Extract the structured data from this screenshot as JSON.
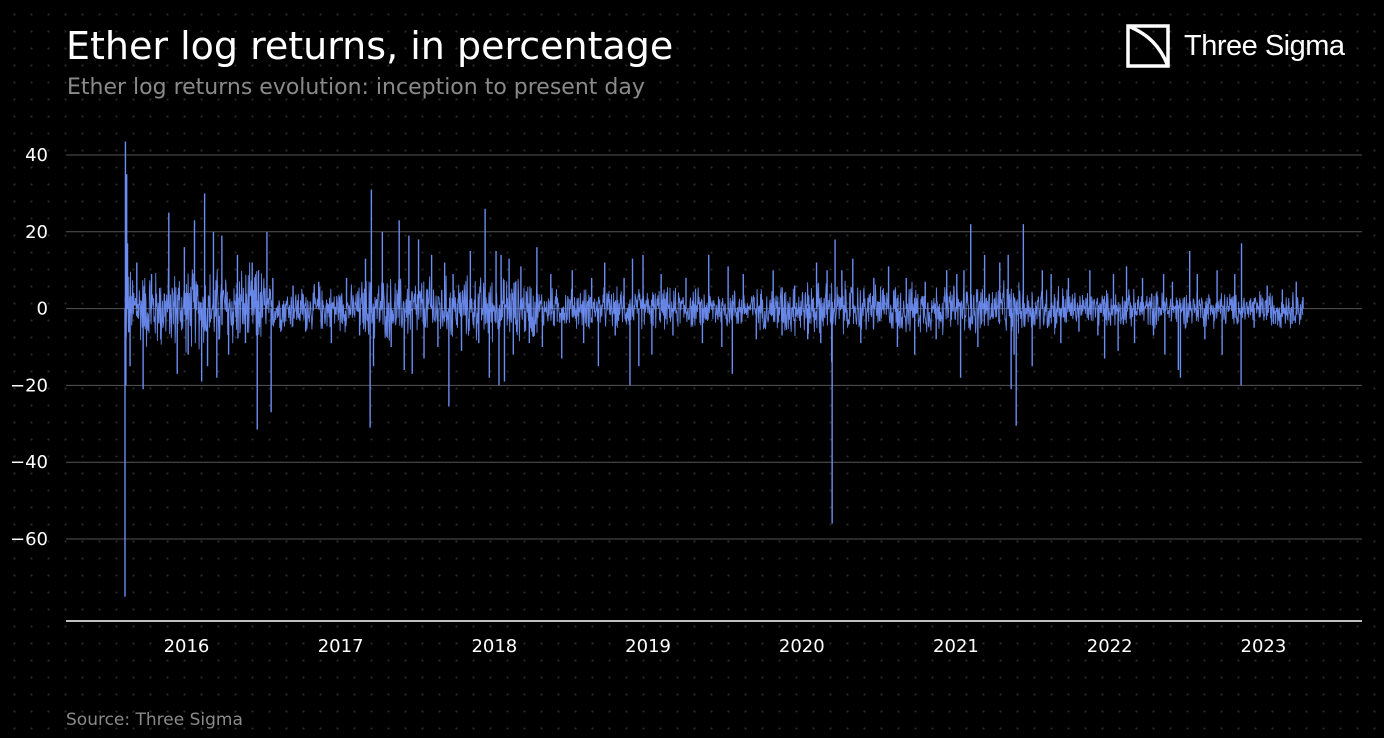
{
  "header": {
    "title": "Ether log returns, in percentage",
    "subtitle": "Ether log returns evolution: inception to present day"
  },
  "brand": {
    "logo_text": "Three Sigma",
    "logo_icon": "three-sigma-logo-icon"
  },
  "footer": {
    "source": "Source: Three Sigma"
  },
  "colors": {
    "background": "#000000",
    "series": "#6b8cf0",
    "grid": "#555555",
    "axis": "#ffffff"
  },
  "chart_data": {
    "type": "line",
    "title": "Ether log returns, in percentage",
    "subtitle": "Ether log returns evolution: inception to present day",
    "xlabel": "",
    "ylabel": "",
    "xlim": [
      "2015-08-08",
      "2023-04-05"
    ],
    "ylim": [
      -80,
      45
    ],
    "yticks": [
      40,
      20,
      0,
      -20,
      -40,
      -60
    ],
    "ytick_labels": [
      "40",
      "20",
      "0",
      "−20",
      "−40",
      "−60"
    ],
    "xticks": [
      "2016-01-01",
      "2017-01-01",
      "2018-01-01",
      "2019-01-01",
      "2020-01-01",
      "2021-01-01",
      "2022-01-01",
      "2023-01-01"
    ],
    "xtick_labels": [
      "2016",
      "2017",
      "2018",
      "2019",
      "2020",
      "2021",
      "2022",
      "2023"
    ],
    "grid": "horizontal",
    "legend": "none",
    "series": [
      {
        "x": [
          "2015-08-08",
          "2015-08-09",
          "2015-08-10",
          "2015-08-12",
          "2015-08-14",
          "2015-08-20",
          "2015-09-05",
          "2015-09-20",
          "2015-10-10",
          "2015-11-01",
          "2015-11-20",
          "2015-12-10",
          "2015-12-27",
          "2016-01-05",
          "2016-01-20",
          "2016-02-06",
          "2016-02-13",
          "2016-02-20",
          "2016-03-05",
          "2016-03-13",
          "2016-03-25",
          "2016-04-10",
          "2016-05-01",
          "2016-05-20",
          "2016-06-05",
          "2016-06-17",
          "2016-06-20",
          "2016-07-10",
          "2016-07-20",
          "2016-07-24",
          "2016-08-10",
          "2016-09-10",
          "2016-10-10",
          "2016-11-10",
          "2016-12-10",
          "2017-01-15",
          "2017-02-15",
          "2017-03-01",
          "2017-03-12",
          "2017-03-15",
          "2017-03-20",
          "2017-04-10",
          "2017-05-01",
          "2017-05-20",
          "2017-06-01",
          "2017-06-12",
          "2017-06-20",
          "2017-07-05",
          "2017-07-18",
          "2017-08-05",
          "2017-08-20",
          "2017-09-05",
          "2017-09-15",
          "2017-09-25",
          "2017-10-15",
          "2017-11-05",
          "2017-11-25",
          "2017-12-10",
          "2017-12-20",
          "2018-01-05",
          "2018-01-12",
          "2018-01-17",
          "2018-01-25",
          "2018-02-05",
          "2018-02-15",
          "2018-03-05",
          "2018-03-25",
          "2018-04-12",
          "2018-04-25",
          "2018-05-15",
          "2018-06-10",
          "2018-07-05",
          "2018-08-01",
          "2018-08-20",
          "2018-09-05",
          "2018-09-20",
          "2018-10-15",
          "2018-11-05",
          "2018-11-19",
          "2018-11-25",
          "2018-12-10",
          "2018-12-20",
          "2019-01-10",
          "2019-02-01",
          "2019-03-01",
          "2019-04-01",
          "2019-05-10",
          "2019-05-25",
          "2019-06-25",
          "2019-07-10",
          "2019-07-20",
          "2019-08-15",
          "2019-09-15",
          "2019-10-25",
          "2019-11-15",
          "2019-12-15",
          "2020-01-15",
          "2020-02-05",
          "2020-02-15",
          "2020-03-01",
          "2020-03-12",
          "2020-03-13",
          "2020-03-20",
          "2020-04-05",
          "2020-05-01",
          "2020-05-20",
          "2020-06-20",
          "2020-07-25",
          "2020-08-15",
          "2020-09-05",
          "2020-09-25",
          "2020-10-20",
          "2020-11-15",
          "2020-12-10",
          "2021-01-03",
          "2021-01-12",
          "2021-01-20",
          "2021-02-05",
          "2021-02-22",
          "2021-03-10",
          "2021-04-15",
          "2021-05-05",
          "2021-05-12",
          "2021-05-19",
          "2021-05-24",
          "2021-06-10",
          "2021-07-01",
          "2021-07-25",
          "2021-08-15",
          "2021-09-07",
          "2021-09-25",
          "2021-10-20",
          "2021-11-15",
          "2021-12-04",
          "2021-12-20",
          "2022-01-10",
          "2022-01-21",
          "2022-02-10",
          "2022-03-01",
          "2022-03-20",
          "2022-04-15",
          "2022-05-09",
          "2022-05-12",
          "2022-05-30",
          "2022-06-13",
          "2022-06-18",
          "2022-07-10",
          "2022-07-28",
          "2022-08-15",
          "2022-09-13",
          "2022-09-25",
          "2022-10-25",
          "2022-11-09",
          "2022-11-10",
          "2022-12-10",
          "2023-01-10",
          "2023-01-25",
          "2023-02-15",
          "2023-03-10",
          "2023-03-20",
          "2023-04-05"
        ],
        "y": [
          -75.0,
          43.5,
          -20.0,
          35.0,
          17.0,
          -15.0,
          12.0,
          -21.0,
          9.0,
          -8.0,
          25.0,
          -17.0,
          16.0,
          -12.0,
          23.0,
          -19.0,
          30.0,
          -15.0,
          20.0,
          -18.0,
          19.0,
          -12.0,
          14.0,
          -9.0,
          12.0,
          -31.5,
          10.0,
          20.0,
          -27.0,
          8.0,
          -5.0,
          6.0,
          -6.0,
          7.0,
          -9.0,
          8.0,
          -7.0,
          13.0,
          -31.0,
          31.0,
          -15.0,
          20.0,
          -10.0,
          23.0,
          -16.0,
          19.0,
          -17.0,
          18.0,
          -13.0,
          14.0,
          -10.0,
          12.0,
          -25.5,
          9.0,
          -11.0,
          15.0,
          -9.0,
          26.0,
          -18.0,
          15.0,
          -20.0,
          14.0,
          -19.0,
          13.0,
          -12.0,
          11.0,
          -9.0,
          16.0,
          -10.0,
          9.0,
          -13.0,
          10.0,
          -9.0,
          8.0,
          -15.0,
          12.0,
          -7.0,
          8.0,
          -20.0,
          13.0,
          -15.0,
          14.0,
          -12.0,
          9.0,
          -7.0,
          8.0,
          -9.0,
          14.0,
          -10.0,
          11.0,
          -17.0,
          9.0,
          -8.0,
          10.0,
          -7.0,
          6.0,
          -8.0,
          12.0,
          -9.0,
          10.0,
          -14.0,
          -56.0,
          18.0,
          10.0,
          13.0,
          -9.0,
          8.0,
          11.0,
          -10.0,
          8.0,
          -12.0,
          7.0,
          -8.0,
          10.0,
          9.0,
          -18.0,
          10.0,
          22.0,
          -10.0,
          14.0,
          12.0,
          14.0,
          -21.0,
          -12.0,
          -30.5,
          22.0,
          -15.0,
          10.0,
          9.0,
          -9.0,
          8.0,
          -6.0,
          10.0,
          -7.0,
          -13.0,
          9.0,
          -11.0,
          11.0,
          -9.0,
          8.0,
          -7.0,
          9.0,
          -12.0,
          7.0,
          -16.0,
          -18.0,
          15.0,
          9.0,
          -8.0,
          10.0,
          -12.0,
          9.0,
          -20.0,
          17.0,
          -5.0,
          6.0,
          -4.0,
          5.0,
          -4.0,
          7.0,
          3.0
        ]
      }
    ]
  }
}
